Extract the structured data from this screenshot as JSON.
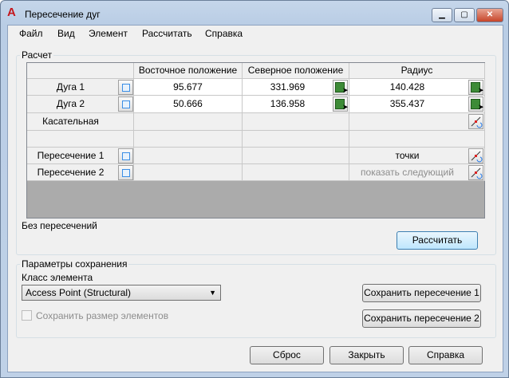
{
  "window": {
    "title": "Пересечение дуг",
    "minimize": "▁",
    "maximize": "▢",
    "close": "✕"
  },
  "menu": [
    "Файл",
    "Вид",
    "Элемент",
    "Рассчитать",
    "Справка"
  ],
  "calc": {
    "legend": "Расчет",
    "headers": [
      "",
      "Восточное положение",
      "Северное положение",
      "Радиус"
    ],
    "rows": [
      {
        "label": "Дуга 1",
        "east": "95.677",
        "north": "331.969",
        "radius": "140.428"
      },
      {
        "label": "Дуга 2",
        "east": "50.666",
        "north": "136.958",
        "radius": "355.437"
      },
      {
        "label": "Касательная",
        "east": "",
        "north": "",
        "radius": ""
      },
      {
        "label": "",
        "east": "",
        "north": "",
        "radius": ""
      },
      {
        "label": "Пересечение 1",
        "east": "",
        "north": "",
        "radius": "точки"
      },
      {
        "label": "Пересечение 2",
        "east": "",
        "north": "",
        "radius": "показать следующий"
      }
    ],
    "status": "Без пересечений",
    "calculate": "Рассчитать"
  },
  "save": {
    "legend": "Параметры сохранения",
    "class_label": "Класс элемента",
    "class_value": "Access Point (Structural)",
    "keep_size": "Сохранить размер элементов",
    "save1": "Сохранить пересечение 1",
    "save2": "Сохранить пересечение 2"
  },
  "footer": {
    "reset": "Сброс",
    "close": "Закрыть",
    "help": "Справка"
  }
}
